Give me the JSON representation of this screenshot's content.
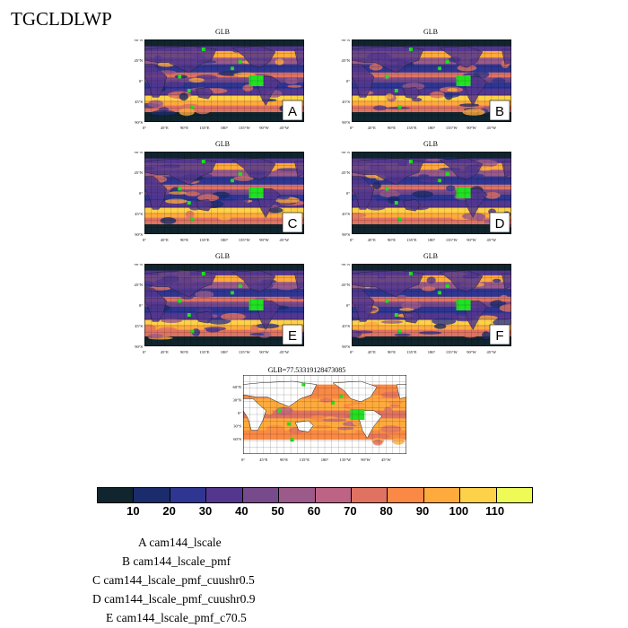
{
  "title": "TGCLDLWP",
  "panels": [
    {
      "id": "A",
      "title": "GLB"
    },
    {
      "id": "B",
      "title": "GLB"
    },
    {
      "id": "C",
      "title": "GLB"
    },
    {
      "id": "D",
      "title": "GLB"
    },
    {
      "id": "E",
      "title": "GLB"
    },
    {
      "id": "F",
      "title": "GLB"
    }
  ],
  "obs_panel": {
    "title": "GLB=77.53319128473085"
  },
  "lat_ticks": [
    "90°N",
    "45°N",
    "0°",
    "45°S",
    "90°S"
  ],
  "lon_ticks": [
    "0°",
    "45°E",
    "90°E",
    "135°E",
    "180°",
    "135°W",
    "90°W",
    "45°W"
  ],
  "obs_lat_ticks": [
    "60°N",
    "30°N",
    "0°",
    "30°S",
    "60°S"
  ],
  "colorbar": {
    "labels": [
      "10",
      "20",
      "30",
      "40",
      "50",
      "60",
      "70",
      "80",
      "90",
      "100",
      "110"
    ],
    "colors": [
      "#10252e",
      "#1a2c6b",
      "#2f3691",
      "#53378f",
      "#774a8c",
      "#9b5a89",
      "#bd6484",
      "#e07262",
      "#f98945",
      "#ffaa3d",
      "#fdd148",
      "#eefb56"
    ]
  },
  "legend": [
    "A  cam144_lscale",
    "B  cam144_lscale_pmf",
    "C  cam144_lscale_pmf_cuushr0.5",
    "D  cam144_lscale_pmf_cuushr0.9",
    "E  cam144_lscale_pmf_c70.5"
  ]
}
